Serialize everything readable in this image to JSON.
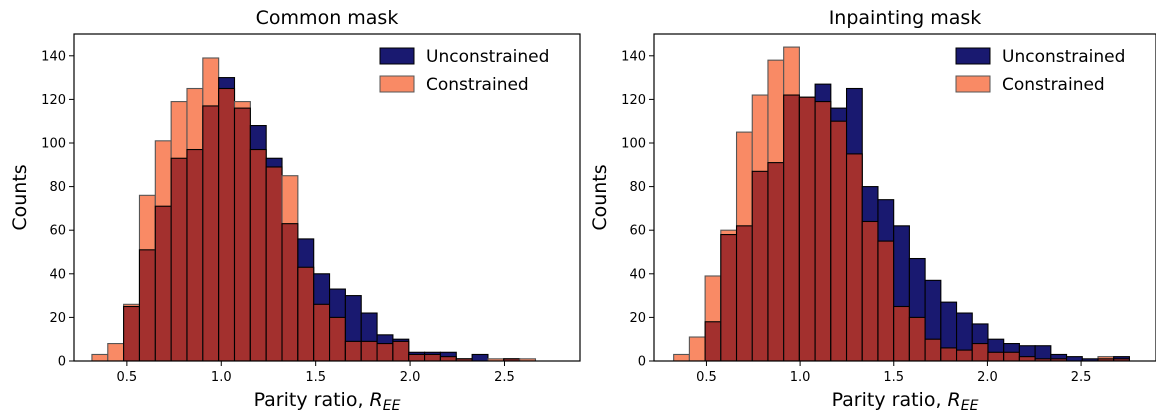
{
  "chart_data": [
    {
      "type": "bar",
      "title": "Common mask",
      "xlabel": "Parity ratio, ",
      "xlabel_symbol": "R",
      "xlabel_subscript": "EE",
      "ylabel": "Counts",
      "xlim": [
        0.22,
        2.9
      ],
      "ylim": [
        0,
        150
      ],
      "xticks": [
        0.5,
        1.0,
        1.5,
        2.0,
        2.5
      ],
      "xtick_labels": [
        "0.5",
        "1.0",
        "1.5",
        "2.0",
        "2.5"
      ],
      "yticks": [
        0,
        20,
        40,
        60,
        80,
        100,
        120,
        140
      ],
      "ytick_labels": [
        "0",
        "20",
        "40",
        "60",
        "80",
        "100",
        "120",
        "140"
      ],
      "legend_position": "top-right",
      "series": [
        {
          "name": "Unconstrained",
          "color": "#191970",
          "bin_start": 0.315,
          "bin_width": 0.0839,
          "values": [
            0,
            0,
            25,
            51,
            71,
            93,
            97,
            117,
            130,
            116,
            108,
            93,
            63,
            56,
            40,
            33,
            30,
            22,
            12,
            10,
            4,
            4,
            4,
            1,
            3,
            0,
            1,
            0
          ]
        },
        {
          "name": "Constrained",
          "color": "#f98a65",
          "bin_start": 0.315,
          "bin_width": 0.0839,
          "values": [
            3,
            8,
            26,
            76,
            101,
            119,
            125,
            139,
            125,
            119,
            97,
            89,
            85,
            43,
            26,
            20,
            9,
            9,
            8,
            9,
            3,
            3,
            2,
            1,
            0,
            1,
            1,
            1
          ]
        }
      ],
      "overlap_color": "#a3302e"
    },
    {
      "type": "bar",
      "title": "Inpainting mask",
      "xlabel": "Parity ratio, ",
      "xlabel_symbol": "R",
      "xlabel_subscript": "EE",
      "ylabel": "Counts",
      "xlim": [
        0.22,
        2.9
      ],
      "ylim": [
        0,
        150
      ],
      "xticks": [
        0.5,
        1.0,
        1.5,
        2.0,
        2.5
      ],
      "xtick_labels": [
        "0.5",
        "1.0",
        "1.5",
        "2.0",
        "2.5"
      ],
      "yticks": [
        0,
        20,
        40,
        60,
        80,
        100,
        120,
        140
      ],
      "ytick_labels": [
        "0",
        "20",
        "40",
        "60",
        "80",
        "100",
        "120",
        "140"
      ],
      "legend_position": "top-right",
      "series": [
        {
          "name": "Unconstrained",
          "color": "#191970",
          "bin_start": 0.325,
          "bin_width": 0.0839,
          "values": [
            0,
            0,
            18,
            58,
            62,
            87,
            91,
            122,
            121,
            127,
            116,
            125,
            80,
            74,
            62,
            47,
            37,
            27,
            22,
            17,
            10,
            8,
            7,
            7,
            3,
            2,
            1,
            1,
            2,
            0
          ]
        },
        {
          "name": "Constrained",
          "color": "#f98a65",
          "bin_start": 0.325,
          "bin_width": 0.0839,
          "values": [
            3,
            11,
            39,
            60,
            105,
            122,
            138,
            144,
            121,
            119,
            110,
            95,
            64,
            55,
            25,
            20,
            10,
            6,
            5,
            8,
            4,
            4,
            2,
            1,
            1,
            0,
            0,
            2,
            1,
            0
          ]
        }
      ],
      "overlap_color": "#a3302e"
    }
  ]
}
